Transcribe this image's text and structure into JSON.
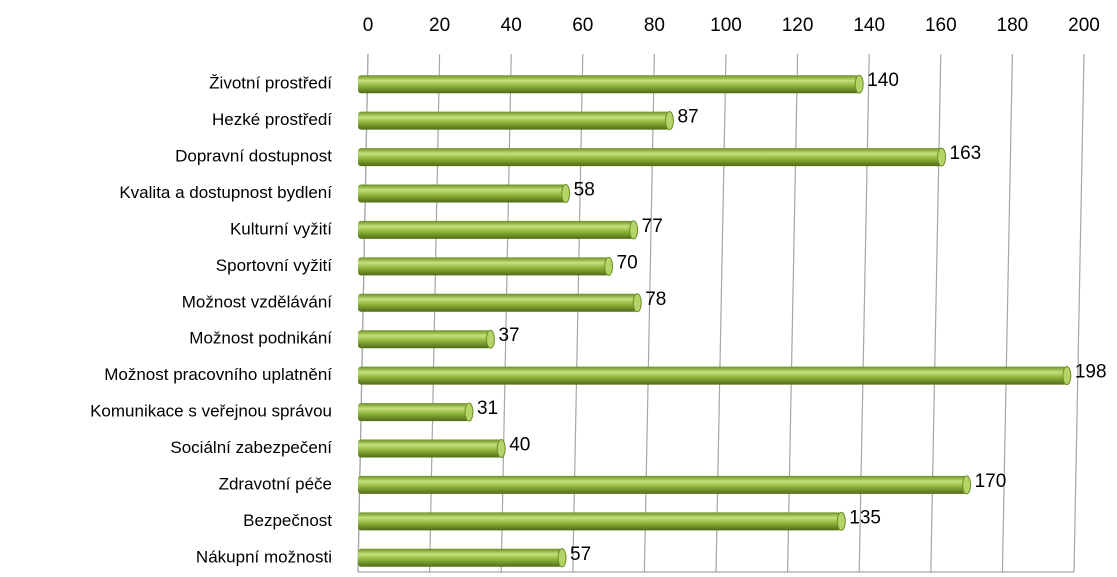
{
  "chart_data": {
    "type": "bar",
    "orientation": "horizontal",
    "categories": [
      "Životní prostředí",
      "Hezké prostředí",
      "Dopravní dostupnost",
      "Kvalita a dostupnost bydlení",
      "Kulturní vyžití",
      "Sportovní vyžití",
      "Možnost vzdělávání",
      "Možnost podnikání",
      "Možnost pracovního uplatnění",
      "Komunikace s veřejnou správou",
      "Sociální zabezpečení",
      "Zdravotní péče",
      "Bezpečnost",
      "Nákupní možnosti"
    ],
    "values": [
      140,
      87,
      163,
      58,
      77,
      70,
      78,
      37,
      198,
      31,
      40,
      170,
      135,
      57
    ],
    "color": "#8db33a",
    "xlim": [
      0,
      200
    ],
    "xticks": [
      0,
      20,
      40,
      60,
      80,
      100,
      120,
      140,
      160,
      180,
      200
    ],
    "grid": true
  }
}
